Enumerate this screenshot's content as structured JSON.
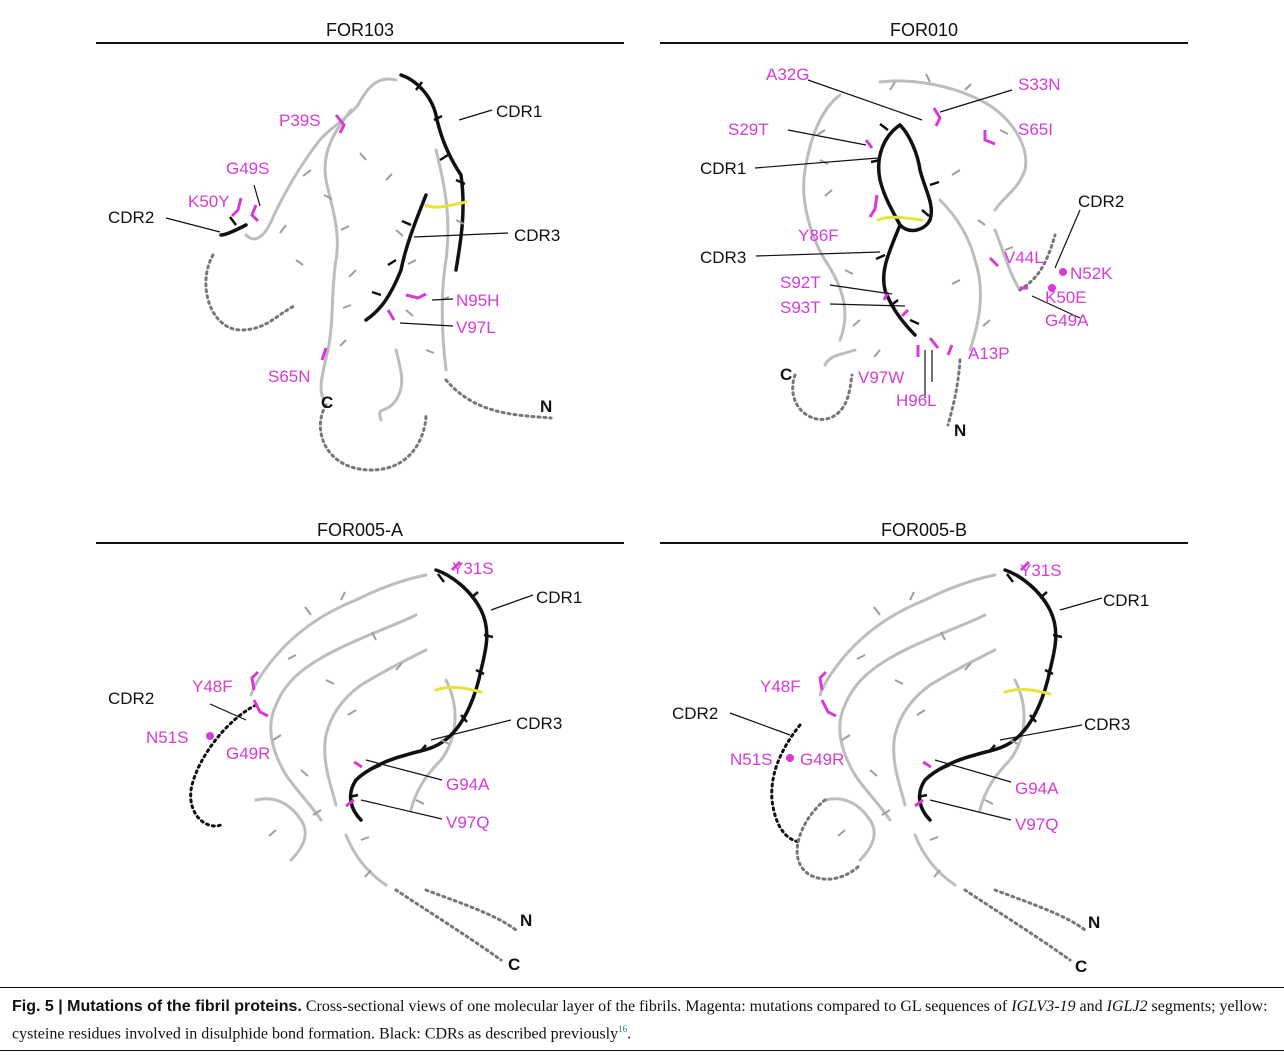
{
  "panels": [
    {
      "title": "FOR103",
      "labels": {
        "cdr1": "CDR1",
        "cdr2": "CDR2",
        "cdr3": "CDR3",
        "m1": "P39S",
        "m2": "G49S",
        "m3": "K50Y",
        "m4": "N95H",
        "m5": "V97L",
        "m6": "S65N",
        "nterm": "N",
        "cterm": "C"
      }
    },
    {
      "title": "FOR010",
      "labels": {
        "cdr1": "CDR1",
        "cdr2": "CDR2",
        "cdr3": "CDR3",
        "m1": "A32G",
        "m2": "S33N",
        "m3": "S29T",
        "m4": "S65I",
        "m5": "Y86F",
        "m6": "V44L",
        "m7": "N52K",
        "m8": "K50E",
        "m9": "G49A",
        "m10": "S92T",
        "m11": "S93T",
        "m12": "A13P",
        "m13": "V97W",
        "m14": "H96L",
        "nterm": "N",
        "cterm": "C"
      }
    },
    {
      "title": "FOR005-A",
      "labels": {
        "cdr1": "CDR1",
        "cdr2": "CDR2",
        "cdr3": "CDR3",
        "m1": "Y31S",
        "m2": "Y48F",
        "m3": "N51S",
        "m4": "G49R",
        "m5": "G94A",
        "m6": "V97Q",
        "nterm": "N",
        "cterm": "C"
      }
    },
    {
      "title": "FOR005-B",
      "labels": {
        "cdr1": "CDR1",
        "cdr2": "CDR2",
        "cdr3": "CDR3",
        "m1": "Y31S",
        "m2": "Y48F",
        "m3": "N51S",
        "m4": "G49R",
        "m5": "G94A",
        "m6": "V97Q",
        "nterm": "N",
        "cterm": "C"
      }
    }
  ],
  "caption": {
    "fig_label": "Fig. 5 | Mutations of the fibril proteins.",
    "text1": " Cross-sectional views of one molecular layer of the fibrils. Magenta: mutations compared to GL sequences of ",
    "gene1": "IGLV3-19",
    "text2": " and ",
    "gene2": "IGLJ2",
    "text3": " segments; yellow: cysteine residues involved in disulphide bond formation. Black: CDRs as described previously",
    "ref": "16",
    "text4": "."
  },
  "colors": {
    "mutation": "#d63bd6",
    "disulphide": "#e4e43a",
    "cdr": "#111111",
    "backbone": "#b8b8b8"
  }
}
